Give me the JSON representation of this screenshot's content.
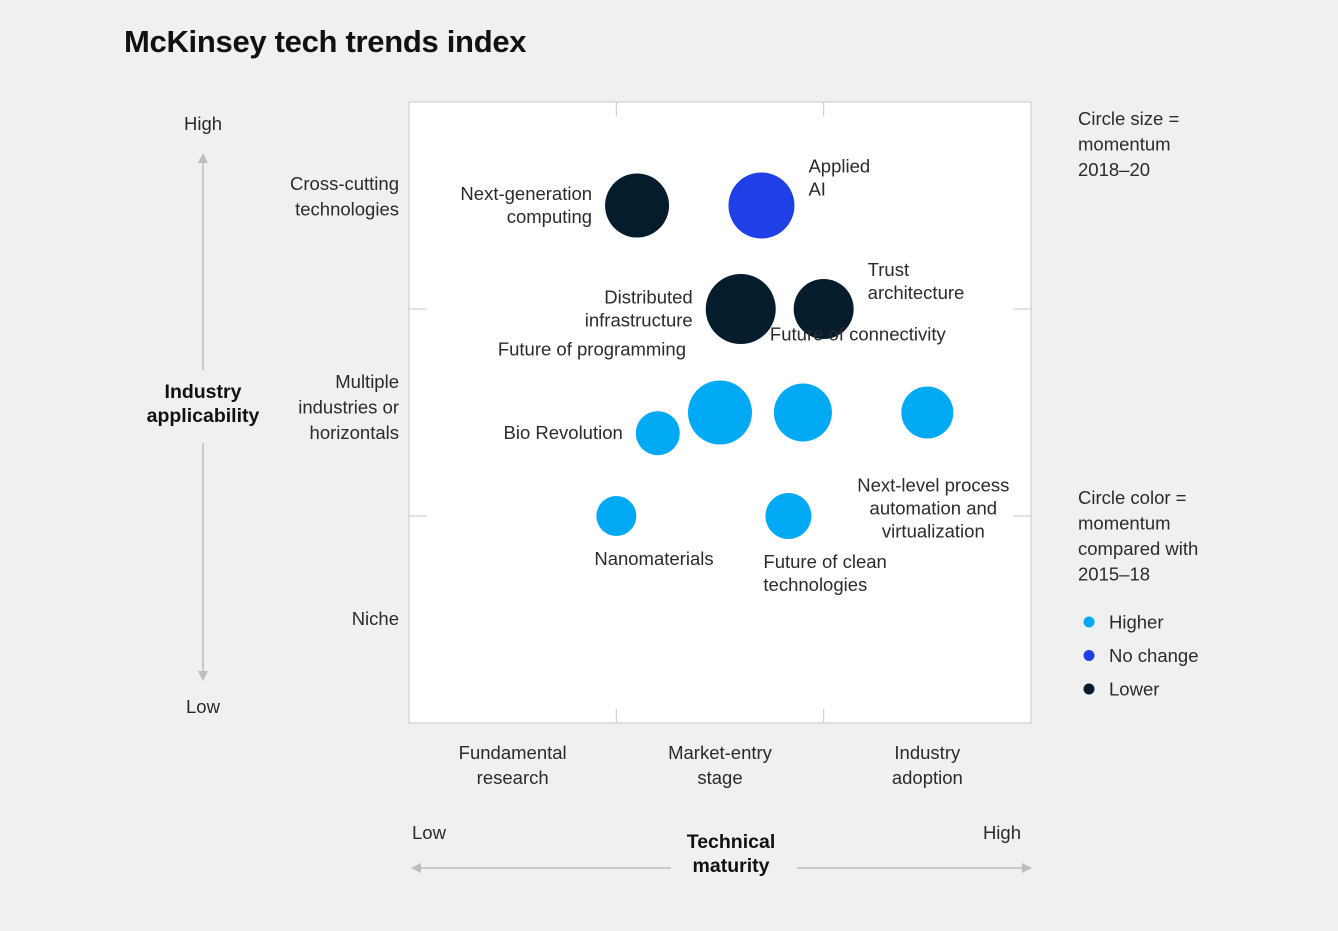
{
  "title": "McKinsey tech trends index",
  "chart_data": {
    "type": "scatter",
    "title": "McKinsey tech trends index",
    "x_axis": {
      "title": [
        "Technical",
        "maturity"
      ],
      "low": "Low",
      "high": "High",
      "categories": [
        [
          "Fundamental",
          "research"
        ],
        [
          "Market-entry",
          "stage"
        ],
        [
          "Industry",
          "adoption"
        ]
      ],
      "range": [
        0,
        3
      ]
    },
    "y_axis": {
      "title": [
        "Industry",
        "applicability"
      ],
      "low": "Low",
      "high": "High",
      "categories": [
        [
          "Niche"
        ],
        [
          "Multiple",
          "industries or",
          "horizontals"
        ],
        [
          "Cross-cutting",
          "technologies"
        ]
      ],
      "range": [
        0,
        3
      ]
    },
    "legend": {
      "size_note": [
        "Circle size =",
        "momentum",
        "2018–20"
      ],
      "color_note": [
        "Circle color =",
        "momentum",
        "compared with",
        "2015–18"
      ],
      "items": [
        {
          "key": "higher",
          "label": "Higher",
          "color": "#00a9f4"
        },
        {
          "key": "no_change",
          "label": "No change",
          "color": "#1f40e6"
        },
        {
          "key": "lower",
          "label": "Lower",
          "color": "#051c2c"
        }
      ]
    },
    "points": [
      {
        "name": [
          "Next-generation",
          "computing"
        ],
        "x": 1.1,
        "y": 2.5,
        "momentum": "lower",
        "size": 32,
        "label_pos": "left"
      },
      {
        "name": [
          "Applied",
          "AI"
        ],
        "x": 1.7,
        "y": 2.5,
        "momentum": "no_change",
        "size": 33,
        "label_pos": "right-top"
      },
      {
        "name": [
          "Distributed",
          "infrastructure"
        ],
        "x": 1.6,
        "y": 2.0,
        "momentum": "lower",
        "size": 35,
        "label_pos": "left"
      },
      {
        "name": [
          "Trust",
          "architecture"
        ],
        "x": 2.0,
        "y": 2.0,
        "momentum": "lower",
        "size": 30,
        "label_pos": "right-top"
      },
      {
        "name": [
          "Future of programming"
        ],
        "x": 1.5,
        "y": 1.5,
        "momentum": "higher",
        "size": 32,
        "label_pos": "top-left"
      },
      {
        "name": [
          "Future of connectivity"
        ],
        "x": 1.9,
        "y": 1.5,
        "momentum": "higher",
        "size": 29,
        "label_pos": "top-right"
      },
      {
        "name": [
          "Bio Revolution"
        ],
        "x": 1.2,
        "y": 1.4,
        "momentum": "higher",
        "size": 22,
        "label_pos": "left"
      },
      {
        "name": [
          "Next-level process",
          "automation and",
          "virtualization"
        ],
        "x": 2.5,
        "y": 1.5,
        "momentum": "higher",
        "size": 26,
        "label_pos": "below"
      },
      {
        "name": [
          "Nanomaterials"
        ],
        "x": 1.0,
        "y": 1.0,
        "momentum": "higher",
        "size": 20,
        "label_pos": "below-right"
      },
      {
        "name": [
          "Future of clean",
          "technologies"
        ],
        "x": 1.83,
        "y": 1.0,
        "momentum": "higher",
        "size": 23,
        "label_pos": "below-right"
      }
    ]
  }
}
